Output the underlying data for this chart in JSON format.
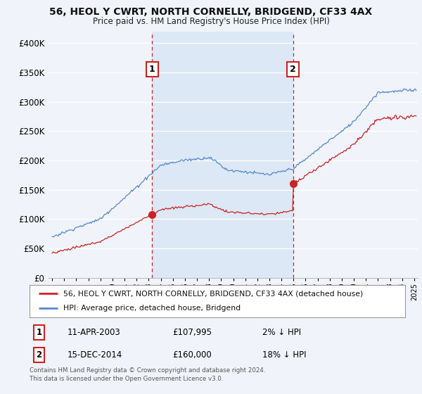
{
  "title": "56, HEOL Y CWRT, NORTH CORNELLY, BRIDGEND, CF33 4AX",
  "subtitle": "Price paid vs. HM Land Registry's House Price Index (HPI)",
  "ytick_values": [
    0,
    50000,
    100000,
    150000,
    200000,
    250000,
    300000,
    350000,
    400000
  ],
  "ylim": [
    0,
    420000
  ],
  "xlim_start": 1994.7,
  "xlim_end": 2025.3,
  "background_color": "#f0f4fa",
  "plot_bg_color": "#f0f4fa",
  "grid_color": "#ffffff",
  "sale1_x": 2003.28,
  "sale1_price": 107995,
  "sale2_x": 2014.96,
  "sale2_price": 160000,
  "sale1_label": "11-APR-2003",
  "sale1_amount": "£107,995",
  "sale1_hpi": "2% ↓ HPI",
  "sale2_label": "15-DEC-2014",
  "sale2_amount": "£160,000",
  "sale2_hpi": "18% ↓ HPI",
  "legend_line1": "56, HEOL Y CWRT, NORTH CORNELLY, BRIDGEND, CF33 4AX (detached house)",
  "legend_line2": "HPI: Average price, detached house, Bridgend",
  "footer": "Contains HM Land Registry data © Crown copyright and database right 2024.\nThis data is licensed under the Open Government Licence v3.0.",
  "hpi_color": "#5588cc",
  "price_color": "#cc2222",
  "vline_color": "#cc2222",
  "highlight_color": "#dce8f5"
}
